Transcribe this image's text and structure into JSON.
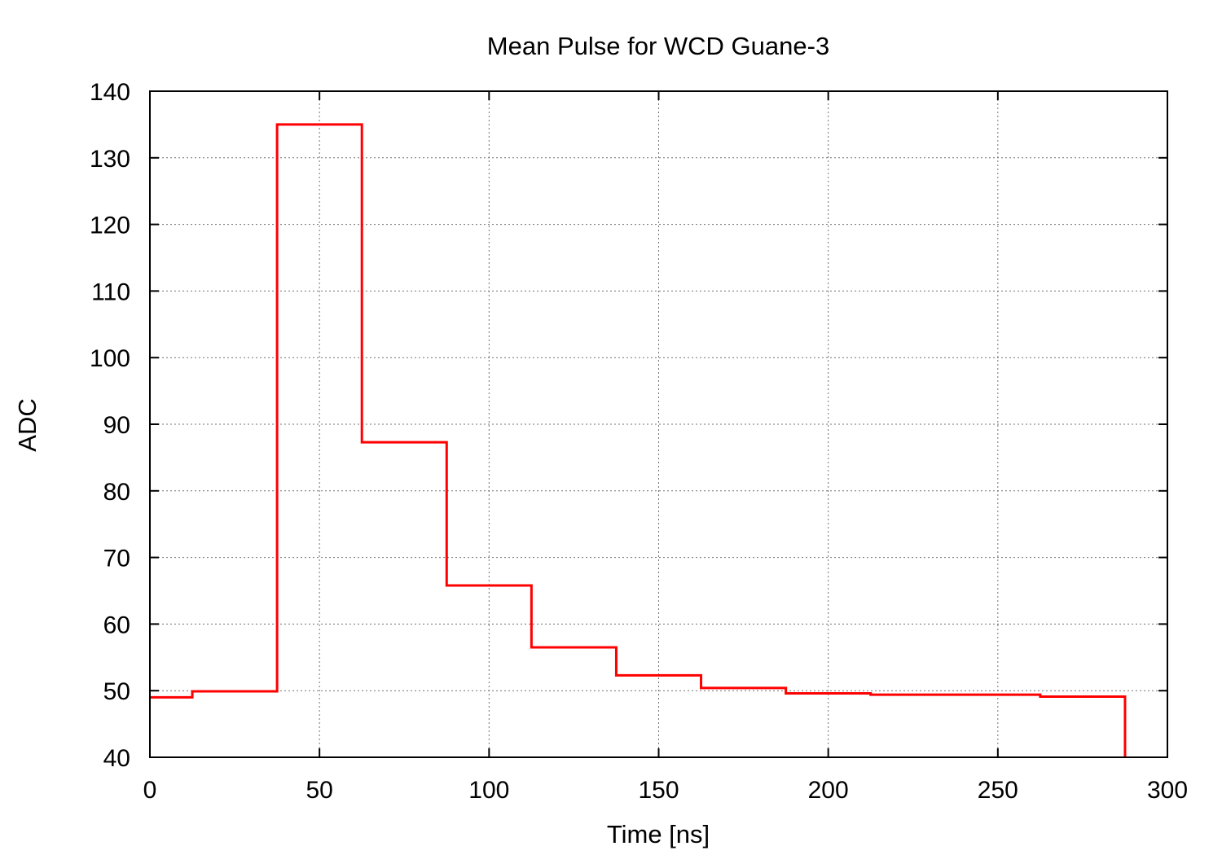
{
  "chart_data": {
    "type": "line",
    "title": "Mean Pulse for WCD Guane-3",
    "xlabel": "Time [ns]",
    "ylabel": "ADC",
    "xlim": [
      0,
      300
    ],
    "ylim": [
      40,
      140
    ],
    "xticks": [
      0,
      50,
      100,
      150,
      200,
      250,
      300
    ],
    "yticks": [
      40,
      50,
      60,
      70,
      80,
      90,
      100,
      110,
      120,
      130,
      140
    ],
    "grid": true,
    "legend": "none",
    "series": [
      {
        "style": "steps",
        "color": "#ff0000",
        "x": [
          0,
          12.5,
          37.5,
          62.5,
          87.5,
          112.5,
          137.5,
          162.5,
          187.5,
          212.5,
          262.5,
          287.5
        ],
        "y": [
          49,
          49.9,
          135,
          87.3,
          65.8,
          56.5,
          52.3,
          50.4,
          49.6,
          49.4,
          49.1,
          40
        ]
      }
    ]
  }
}
